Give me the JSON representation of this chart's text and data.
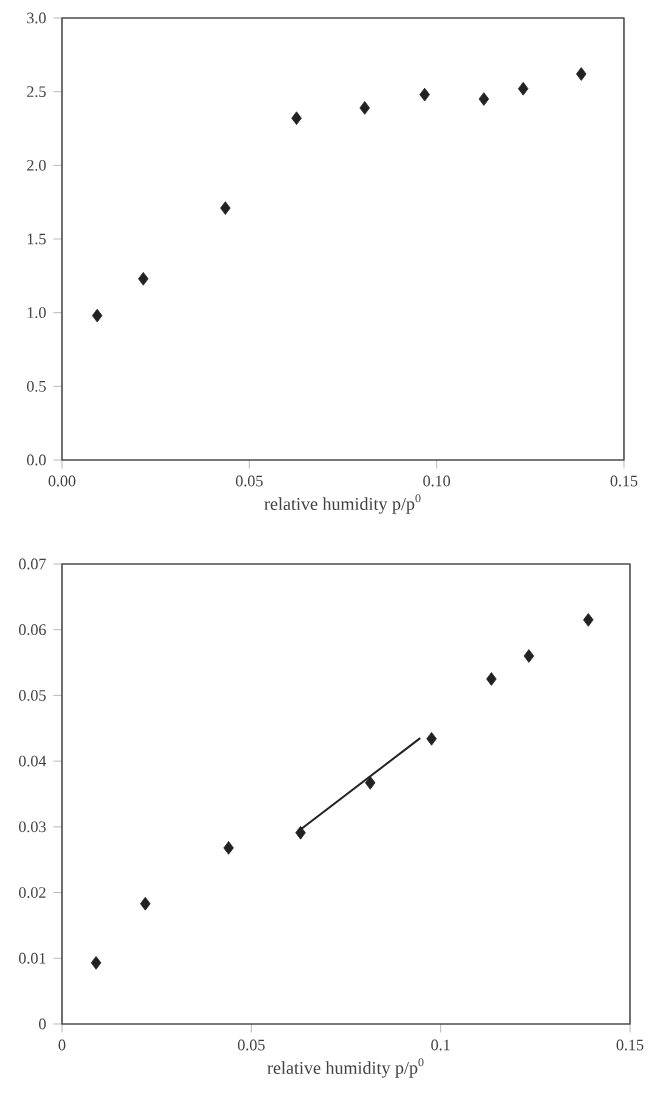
{
  "chart_data": [
    {
      "type": "scatter",
      "xlabel": "relative humidity p/p$^{0}$",
      "marker": "diamond",
      "grid": false,
      "xlim": [
        0,
        0.15
      ],
      "ylim": [
        0,
        3
      ],
      "xticks": [
        {
          "value": 0,
          "label": "0.00"
        },
        0.05,
        {
          "value": 0.1,
          "label": "0.10"
        },
        0.15
      ],
      "yticks": [
        {
          "value": 0,
          "label": "0.0"
        },
        0.5,
        {
          "value": 1,
          "label": "1.0"
        },
        1.5,
        {
          "value": 2,
          "label": "2.0"
        },
        2.5,
        {
          "value": 3,
          "label": "3.0"
        }
      ],
      "series": [
        {
          "color": "#222222",
          "x": [
            0.0094,
            0.0217,
            0.0436,
            0.0626,
            0.0808,
            0.0968,
            0.1126,
            0.1231,
            0.1386
          ],
          "values": [
            0.98,
            1.23,
            1.71,
            2.32,
            2.39,
            2.48,
            2.45,
            2.52,
            2.62
          ]
        }
      ]
    },
    {
      "type": "scatter",
      "xlabel": "relative humidity p/p$^{0}$",
      "marker": "diamond",
      "grid": false,
      "xlim": [
        0,
        0.15
      ],
      "ylim": [
        0,
        0.07
      ],
      "xticks": [
        0,
        0.05,
        0.1,
        0.15
      ],
      "yticks": [
        0,
        0.01,
        0.02,
        0.03,
        0.04,
        0.05,
        0.06,
        0.07
      ],
      "series": [
        {
          "color": "#222222",
          "x": [
            0.009,
            0.022,
            0.044,
            0.063,
            0.0814,
            0.0976,
            0.1134,
            0.1233,
            0.139
          ],
          "values": [
            0.0093,
            0.0183,
            0.0268,
            0.0291,
            0.0367,
            0.0434,
            0.0525,
            0.056,
            0.0615
          ]
        },
        {
          "type": "line",
          "color": "#222222",
          "marker": "none",
          "x": [
            0.063,
            0.0946
          ],
          "values": [
            0.0296,
            0.0435
          ]
        }
      ]
    }
  ]
}
